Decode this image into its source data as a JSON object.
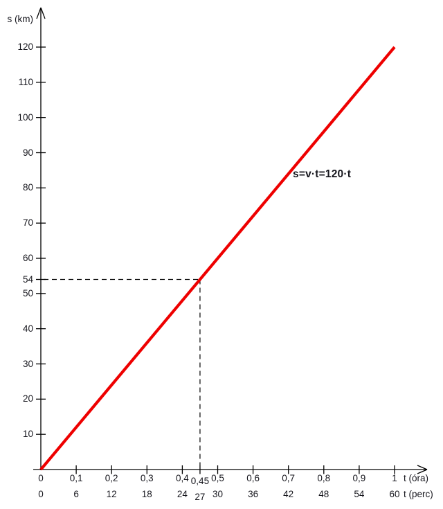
{
  "colors": {
    "background": "#ffffff",
    "line": "#ee0000",
    "axis": "#000000",
    "text": "#16161d",
    "dashed_guide": "#000000"
  },
  "chart_data": {
    "type": "line",
    "title": "",
    "equation_label": "s=v·t=120·t",
    "y_axis": {
      "label": "s (km)",
      "range": [
        0,
        127
      ],
      "unit_per_tick": 10
    },
    "x_axis": {
      "label_hours": "t (óra)",
      "label_minutes": "t (perc)",
      "range": [
        0,
        1.09
      ]
    },
    "series": [
      {
        "name": "s=v·t=120·t",
        "color": "#ee0000",
        "points": [
          {
            "t": 0,
            "s": 0
          },
          {
            "t": 1,
            "s": 120
          }
        ]
      }
    ],
    "highlight_point": {
      "t": 0.45,
      "s": 54
    },
    "y_ticks": [
      {
        "v": 10,
        "label": "10",
        "special": false
      },
      {
        "v": 20,
        "label": "20",
        "special": false
      },
      {
        "v": 30,
        "label": "30",
        "special": false
      },
      {
        "v": 40,
        "label": "40",
        "special": false
      },
      {
        "v": 50,
        "label": "50",
        "special": false
      },
      {
        "v": 54,
        "label": "54",
        "special": true
      },
      {
        "v": 60,
        "label": "60",
        "special": false
      },
      {
        "v": 70,
        "label": "70",
        "special": false
      },
      {
        "v": 80,
        "label": "80",
        "special": false
      },
      {
        "v": 90,
        "label": "90",
        "special": false
      },
      {
        "v": 100,
        "label": "100",
        "special": false
      },
      {
        "v": 110,
        "label": "110",
        "special": false
      },
      {
        "v": 120,
        "label": "120",
        "special": false
      }
    ],
    "x_ticks": [
      {
        "v": 0,
        "hours": "0",
        "minutes": "0",
        "special": false
      },
      {
        "v": 0.1,
        "hours": "0,1",
        "minutes": "6",
        "special": false
      },
      {
        "v": 0.2,
        "hours": "0,2",
        "minutes": "12",
        "special": false
      },
      {
        "v": 0.3,
        "hours": "0,3",
        "minutes": "18",
        "special": false
      },
      {
        "v": 0.4,
        "hours": "0,4",
        "minutes": "24",
        "special": false
      },
      {
        "v": 0.45,
        "hours": "0,45",
        "minutes": "27",
        "special": true
      },
      {
        "v": 0.5,
        "hours": "0,5",
        "minutes": "30",
        "special": false
      },
      {
        "v": 0.6,
        "hours": "0,6",
        "minutes": "36",
        "special": false
      },
      {
        "v": 0.7,
        "hours": "0,7",
        "minutes": "42",
        "special": false
      },
      {
        "v": 0.8,
        "hours": "0,8",
        "minutes": "48",
        "special": false
      },
      {
        "v": 0.9,
        "hours": "0,9",
        "minutes": "54",
        "special": false
      },
      {
        "v": 1,
        "hours": "1",
        "minutes": "60",
        "special": false
      }
    ],
    "legend": null,
    "grid": false
  }
}
